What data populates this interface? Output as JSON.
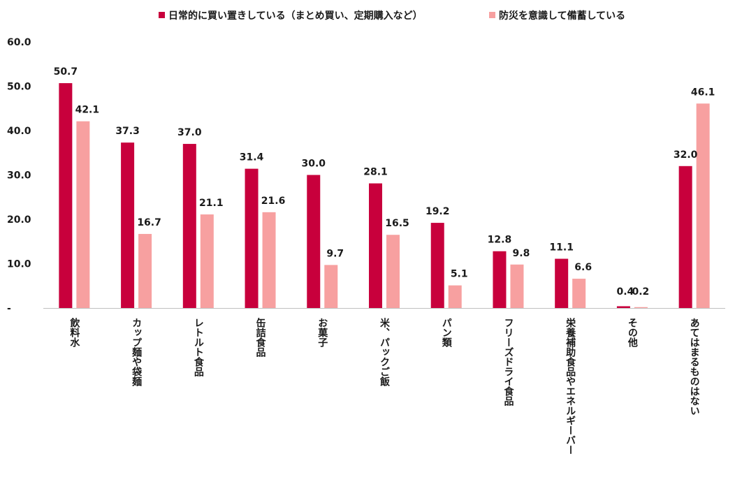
{
  "chart_data": {
    "type": "bar",
    "categories": [
      "飲料水",
      "カップ麺や袋麺",
      "レトルト食品",
      "缶詰食品",
      "お菓子",
      "米、パックご飯",
      "パン類",
      "フリーズドライ食品",
      "栄養補助食品やエネルギーバー",
      "その他",
      "あてはまるものはない"
    ],
    "series": [
      {
        "name": "日常的に買い置きしている（まとめ買い、定期購入など）",
        "color": "#c8003c",
        "values": [
          50.7,
          37.3,
          37.0,
          31.4,
          30.0,
          28.1,
          19.2,
          12.8,
          11.1,
          0.4,
          32.0
        ],
        "labels": [
          "50.7",
          "37.3",
          "37.0",
          "31.4",
          "30.0",
          "28.1",
          "19.2",
          "12.8",
          "11.1",
          "0.4",
          "32.0"
        ]
      },
      {
        "name": "防災を意識して備蓄している",
        "color": "#f7a0a0",
        "values": [
          42.1,
          16.7,
          21.1,
          21.6,
          9.7,
          16.5,
          5.1,
          9.8,
          6.6,
          0.2,
          46.1
        ],
        "labels": [
          "42.1",
          "16.7",
          "21.1",
          "21.6",
          "9.7",
          "16.5",
          "5.1",
          "9.8",
          "6.6",
          "0.2",
          "46.1"
        ]
      }
    ],
    "ylim": [
      0,
      60
    ],
    "yticks": [
      "-",
      "10.0",
      "20.0",
      "30.0",
      "40.0",
      "50.0",
      "60.0"
    ],
    "ytick_values": [
      0,
      10,
      20,
      30,
      40,
      50,
      60
    ],
    "legend": "top-center",
    "grid": false
  }
}
